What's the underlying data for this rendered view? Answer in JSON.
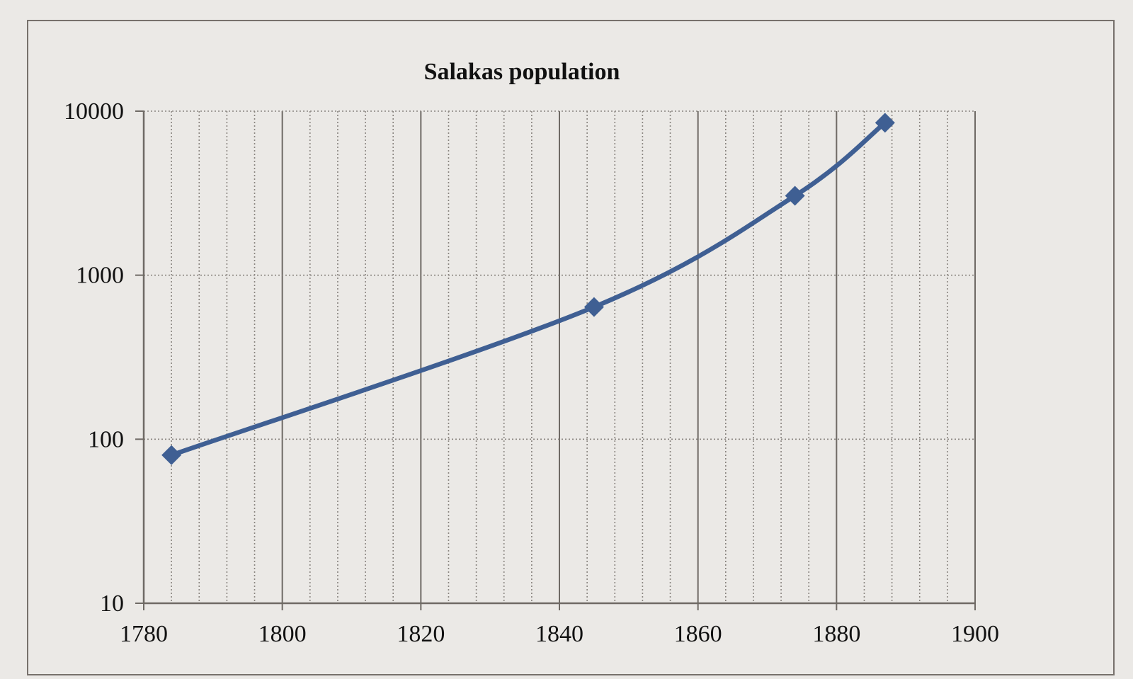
{
  "chart_data": {
    "type": "line",
    "title": "Salakas population",
    "xlabel": "",
    "ylabel": "",
    "x_scale": "linear",
    "y_scale": "log",
    "xlim": [
      1780,
      1900
    ],
    "ylim": [
      10,
      10000
    ],
    "x_ticks": [
      1780,
      1800,
      1820,
      1840,
      1860,
      1880,
      1900
    ],
    "y_ticks": [
      10,
      100,
      1000,
      10000
    ],
    "x_minor_step": 4,
    "grid": true,
    "legend": "none",
    "marker": "diamond",
    "smooth": true,
    "series": [
      {
        "x": [
          1784,
          1845,
          1874,
          1887
        ],
        "values": [
          80,
          640,
          3050,
          8500
        ],
        "color": "#3f5f93"
      }
    ]
  }
}
